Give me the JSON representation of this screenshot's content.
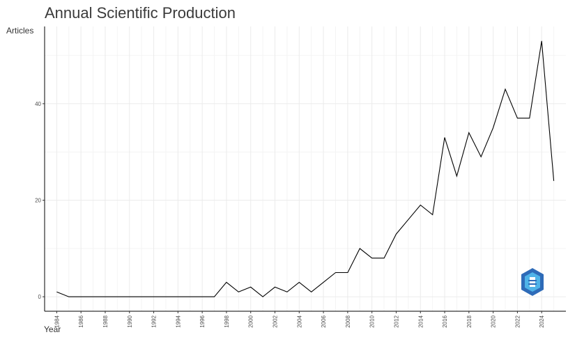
{
  "chart_data": {
    "type": "line",
    "title": "Annual Scientific Production",
    "xlabel": "Year",
    "ylabel": "Articles",
    "x": [
      1984,
      1985,
      1986,
      1987,
      1988,
      1989,
      1990,
      1991,
      1992,
      1993,
      1994,
      1995,
      1996,
      1997,
      1998,
      1999,
      2000,
      2001,
      2002,
      2003,
      2004,
      2005,
      2006,
      2007,
      2008,
      2009,
      2010,
      2011,
      2012,
      2013,
      2014,
      2015,
      2016,
      2017,
      2018,
      2019,
      2020,
      2021,
      2022,
      2023,
      2024,
      2025
    ],
    "series": [
      {
        "values": [
          1,
          0,
          0,
          0,
          0,
          0,
          0,
          0,
          0,
          0,
          0,
          0,
          0,
          0,
          3,
          1,
          2,
          0,
          2,
          1,
          3,
          1,
          3,
          5,
          5,
          10,
          8,
          8,
          13,
          16,
          19,
          17,
          33,
          25,
          34,
          29,
          35,
          43,
          37,
          37,
          53,
          24
        ]
      }
    ],
    "x_ticks": [
      "1984",
      "1986",
      "1988",
      "1990",
      "1992",
      "1994",
      "1996",
      "1998",
      "2000",
      "2002",
      "2004",
      "2006",
      "2008",
      "2010",
      "2012",
      "2014",
      "2016",
      "2018",
      "2020",
      "2022",
      "2024"
    ],
    "y_ticks": [
      "0",
      "20",
      "40"
    ],
    "xlim": [
      1983,
      2026
    ],
    "ylim": [
      -3,
      56
    ],
    "grid": true,
    "line_color": "#000000",
    "grid_color": "#ebebeb"
  }
}
